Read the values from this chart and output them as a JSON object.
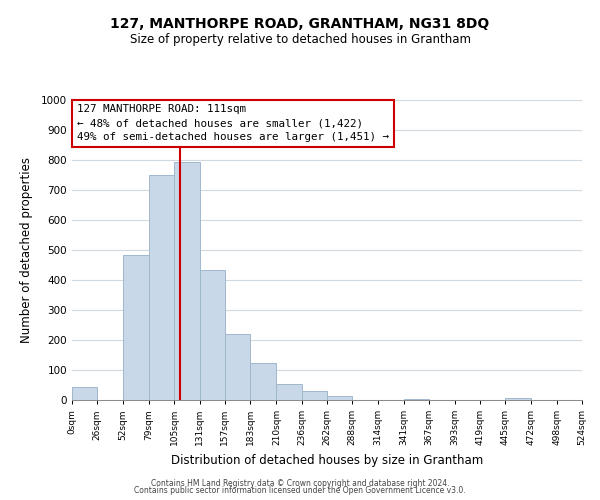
{
  "title": "127, MANTHORPE ROAD, GRANTHAM, NG31 8DQ",
  "subtitle": "Size of property relative to detached houses in Grantham",
  "xlabel": "Distribution of detached houses by size in Grantham",
  "ylabel": "Number of detached properties",
  "bar_left_edges": [
    0,
    26,
    52,
    79,
    105,
    131,
    157,
    183,
    210,
    236,
    262,
    288,
    314,
    341,
    367,
    393,
    419,
    445,
    472,
    498
  ],
  "bar_heights": [
    45,
    0,
    485,
    750,
    795,
    435,
    220,
    125,
    55,
    30,
    15,
    0,
    0,
    5,
    0,
    0,
    0,
    8,
    0,
    0
  ],
  "bar_color": "#c8d8e8",
  "bar_edge_color": "#a0b8cc",
  "vline_x": 111,
  "vline_color": "#cc0000",
  "xlim": [
    0,
    524
  ],
  "ylim": [
    0,
    1000
  ],
  "yticks": [
    0,
    100,
    200,
    300,
    400,
    500,
    600,
    700,
    800,
    900,
    1000
  ],
  "xtick_labels": [
    "0sqm",
    "26sqm",
    "52sqm",
    "79sqm",
    "105sqm",
    "131sqm",
    "157sqm",
    "183sqm",
    "210sqm",
    "236sqm",
    "262sqm",
    "288sqm",
    "314sqm",
    "341sqm",
    "367sqm",
    "393sqm",
    "419sqm",
    "445sqm",
    "472sqm",
    "498sqm",
    "524sqm"
  ],
  "xtick_positions": [
    0,
    26,
    52,
    79,
    105,
    131,
    157,
    183,
    210,
    236,
    262,
    288,
    314,
    341,
    367,
    393,
    419,
    445,
    472,
    498,
    524
  ],
  "annotation_title": "127 MANTHORPE ROAD: 111sqm",
  "annotation_line1": "← 48% of detached houses are smaller (1,422)",
  "annotation_line2": "49% of semi-detached houses are larger (1,451) →",
  "annotation_box_color": "#ffffff",
  "annotation_box_edge": "#cc0000",
  "footer1": "Contains HM Land Registry data © Crown copyright and database right 2024.",
  "footer2": "Contains public sector information licensed under the Open Government Licence v3.0.",
  "background_color": "#ffffff",
  "grid_color": "#d0d8e0"
}
